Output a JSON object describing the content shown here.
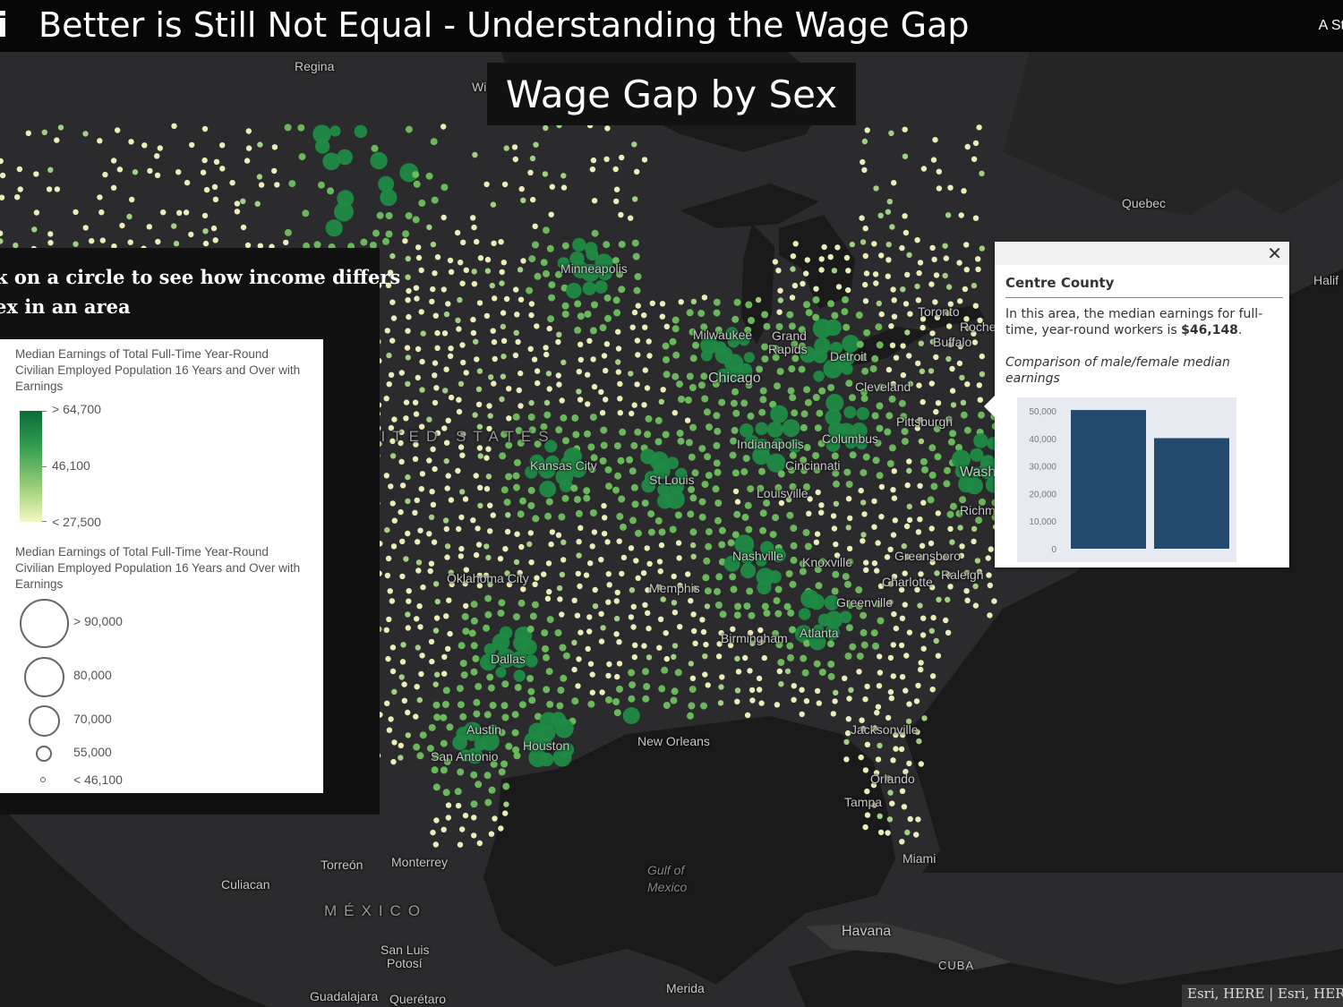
{
  "app": {
    "logo": "i",
    "title": "Better is Still Not Equal - Understanding the Wage Gap",
    "right_text": "A St"
  },
  "map_title": "Wage Gap by Sex",
  "side_panel": {
    "intro_line1": "k on a circle to see how income differs",
    "intro_line2": "ex in an area"
  },
  "legend": {
    "color_title": "Median Earnings of Total Full-Time Year-Round Civilian Employed Population 16 Years and Over with Earnings",
    "color_stops": [
      "> 64,700",
      "46,100",
      "< 27,500"
    ],
    "size_title": "Median Earnings of Total Full-Time Year-Round Civilian Employed Population 16 Years and Over with Earnings",
    "size_stops": [
      "> 90,000",
      "80,000",
      "70,000",
      "55,000",
      "< 46,100"
    ]
  },
  "popup": {
    "close": "✕",
    "name": "Centre County",
    "desc_prefix": "In this area, the median earnings for full-time, year-round workers is ",
    "desc_value": "$46,148",
    "desc_suffix": ".",
    "comparison": "Comparison of male/female median earnings",
    "chart_data": {
      "type": "bar",
      "categories": [
        "",
        ""
      ],
      "values": [
        50300,
        40100
      ],
      "ylim": [
        0,
        50000
      ],
      "yticks": [
        "50,000",
        "40,000",
        "30,000",
        "20,000",
        "10,000",
        "0"
      ],
      "bar_color": "#234a6e"
    }
  },
  "map_labels": {
    "regina": "Regina",
    "winnipeg": "Winnipeg",
    "quebec": "Quebec",
    "halifax": "Halif",
    "minneapolis": "Minneapolis",
    "toronto": "Toronto",
    "rochester": "Roche",
    "buffalo": "Buffalo",
    "milwaukee": "Milwaukee",
    "grand_rapids_1": "Grand",
    "grand_rapids_2": "Rapids",
    "detroit": "Detroit",
    "chicago": "Chicago",
    "cleveland": "Cleveland",
    "pittsburgh": "Pittsburgh",
    "united_states": "UNITED STATES",
    "indianapolis": "Indianapolis",
    "columbus": "Columbus",
    "washington": "Wash",
    "kansas_city": "Kansas City",
    "cincinnati": "Cincinnati",
    "st_louis": "St Louis",
    "louisville": "Louisville",
    "richmond": "Richm",
    "nashville": "Nashville",
    "knoxville": "Knoxville",
    "greensboro": "Greensboro",
    "oklahoma_city": "Oklahoma City",
    "raleigh": "Raleigh",
    "memphis": "Memphis",
    "charlotte": "Charlotte",
    "greenville": "Greenville",
    "birmingham": "Birmingham",
    "atlanta": "Atlanta",
    "dallas": "Dallas",
    "austin": "Austin",
    "houston": "Houston",
    "new_orleans": "New Orleans",
    "san_antonio": "San Antonio",
    "jacksonville": "Jacksonville",
    "orlando": "Orlando",
    "tampa": "Tampa",
    "miami": "Miami",
    "torreon": "Torreón",
    "monterrey": "Monterrey",
    "gulf_1": "Gulf of",
    "gulf_2": "Mexico",
    "culiacan": "Culiacan",
    "mexico": "MÉXICO",
    "havana": "Havana",
    "cuba": "CUBA",
    "san_luis_1": "San Luis",
    "san_luis_2": "Potosí",
    "guadalajara": "Guadalajara",
    "queretaro": "Querétaro",
    "merida": "Merida"
  },
  "attribution": "Esri, HERE | Esri, HERE",
  "colors": {
    "land": "#2b2b2d",
    "water": "#191919",
    "dot_light": "#f3f9c3",
    "dot_dark": "#1f8a45"
  }
}
